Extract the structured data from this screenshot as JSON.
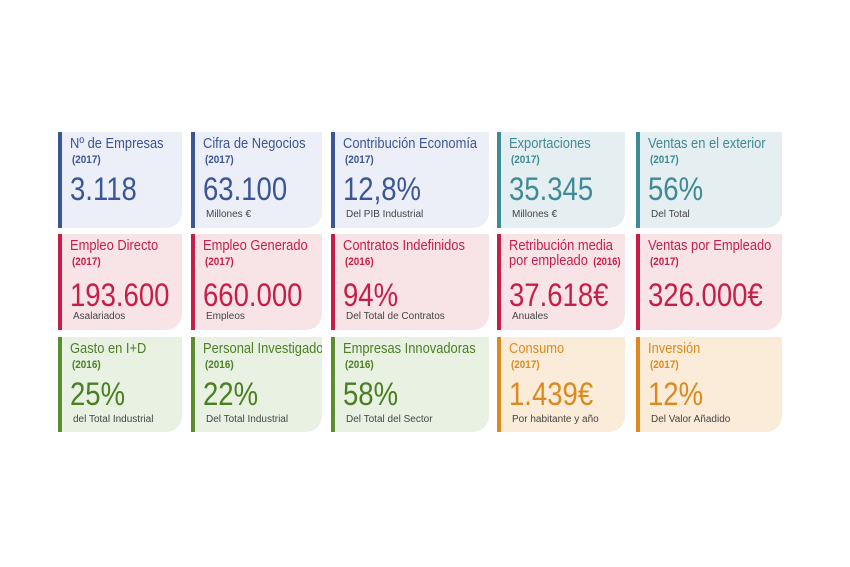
{
  "cards": [
    {
      "title": "Nº de Empresas",
      "year": "(2017)",
      "value": "3.118",
      "sub": ""
    },
    {
      "title": "Cifra de Negocios",
      "year": "(2017)",
      "value": "63.100",
      "sub": "Millones €"
    },
    {
      "title": "Contribución Economía",
      "year": "(2017)",
      "value": "12,8%",
      "sub": "Del PIB Industrial"
    },
    {
      "title": "Exportaciones",
      "year": "(2017)",
      "value": "35.345",
      "sub": "Millones €"
    },
    {
      "title": "Ventas en el exterior",
      "year": "(2017)",
      "value": "56%",
      "sub": "Del Total"
    },
    {
      "title": "Empleo Directo",
      "year": "(2017)",
      "value": "193.600",
      "sub": "Asalariados"
    },
    {
      "title": "Empleo Generado",
      "year": "(2017)",
      "value": "660.000",
      "sub": "Empleos"
    },
    {
      "title": "Contratos Indefinidos",
      "year": "(2016)",
      "value": "94%",
      "sub": "Del Total de Contratos"
    },
    {
      "title_line1": "Retribución media",
      "title_line2": "por empleado",
      "year": "(2016)",
      "value": "37.618€",
      "sub": "Anuales"
    },
    {
      "title": "Ventas por Empleado",
      "year": "(2017)",
      "value": "326.000€",
      "sub": ""
    },
    {
      "title": "Gasto en I+D",
      "year": "(2016)",
      "value": "25%",
      "sub": "del Total Industrial"
    },
    {
      "title": "Personal Investigador",
      "year": "(2016)",
      "value": "22%",
      "sub": "Del Total Industrial"
    },
    {
      "title": "Empresas Innovadoras",
      "year": "(2016)",
      "value": "58%",
      "sub": "Del Total del Sector"
    },
    {
      "title": "Consumo",
      "year": "(2017)",
      "value": "1.439€",
      "sub": "Por habitante y año"
    },
    {
      "title": "Inversión",
      "year": "(2017)",
      "value": "12%",
      "sub": "Del Valor Añadido"
    }
  ],
  "colors": {
    "blue": "#3a5695",
    "teal": "#3f8a97",
    "red": "#c71e47",
    "green": "#4a7f23",
    "orange": "#dc8a1d"
  }
}
